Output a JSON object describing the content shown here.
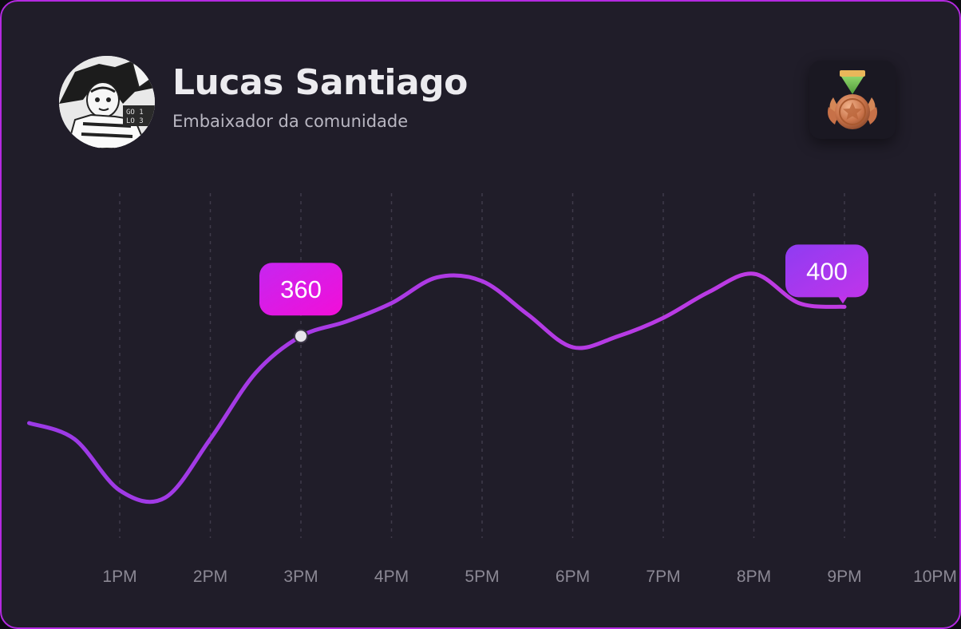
{
  "profile": {
    "name": "Lucas Santiago",
    "role": "Embaixador da comunidade",
    "avatar_icon": "anime-soccer-player-avatar",
    "badge_icon": "bronze-medal-icon"
  },
  "colors": {
    "card_background": "#201d29",
    "card_border": "#b329e0",
    "line_start": "#9b3ae6",
    "line_end": "#c13be3",
    "bubble_pink": "#f20ed8",
    "bubble_purple": "#9b3af0",
    "grid": "#3f3b4a",
    "axis_text": "#8b8894"
  },
  "chart_data": {
    "type": "line",
    "x": [
      "12:30PM",
      "1PM",
      "1:30PM",
      "2PM",
      "2:30PM",
      "3PM",
      "3:30PM",
      "4PM",
      "4:30PM",
      "5PM",
      "5:30PM",
      "6PM",
      "6:30PM",
      "7PM",
      "7:30PM",
      "8PM",
      "8:30PM",
      "9PM"
    ],
    "values": [
      220,
      150,
      140,
      220,
      310,
      360,
      380,
      405,
      440,
      435,
      390,
      345,
      360,
      385,
      420,
      445,
      405,
      400
    ],
    "x_ticks": [
      "1PM",
      "2PM",
      "3PM",
      "4PM",
      "5PM",
      "6PM",
      "7PM",
      "8PM",
      "9PM",
      "10PM"
    ],
    "ylim": [
      120,
      470
    ],
    "grid": "vertical-dashed",
    "annotations": [
      {
        "x": "3PM",
        "value": "360",
        "label": "360",
        "style": "pink"
      },
      {
        "x": "9PM",
        "value": "400",
        "label": "400",
        "style": "purple"
      }
    ]
  }
}
